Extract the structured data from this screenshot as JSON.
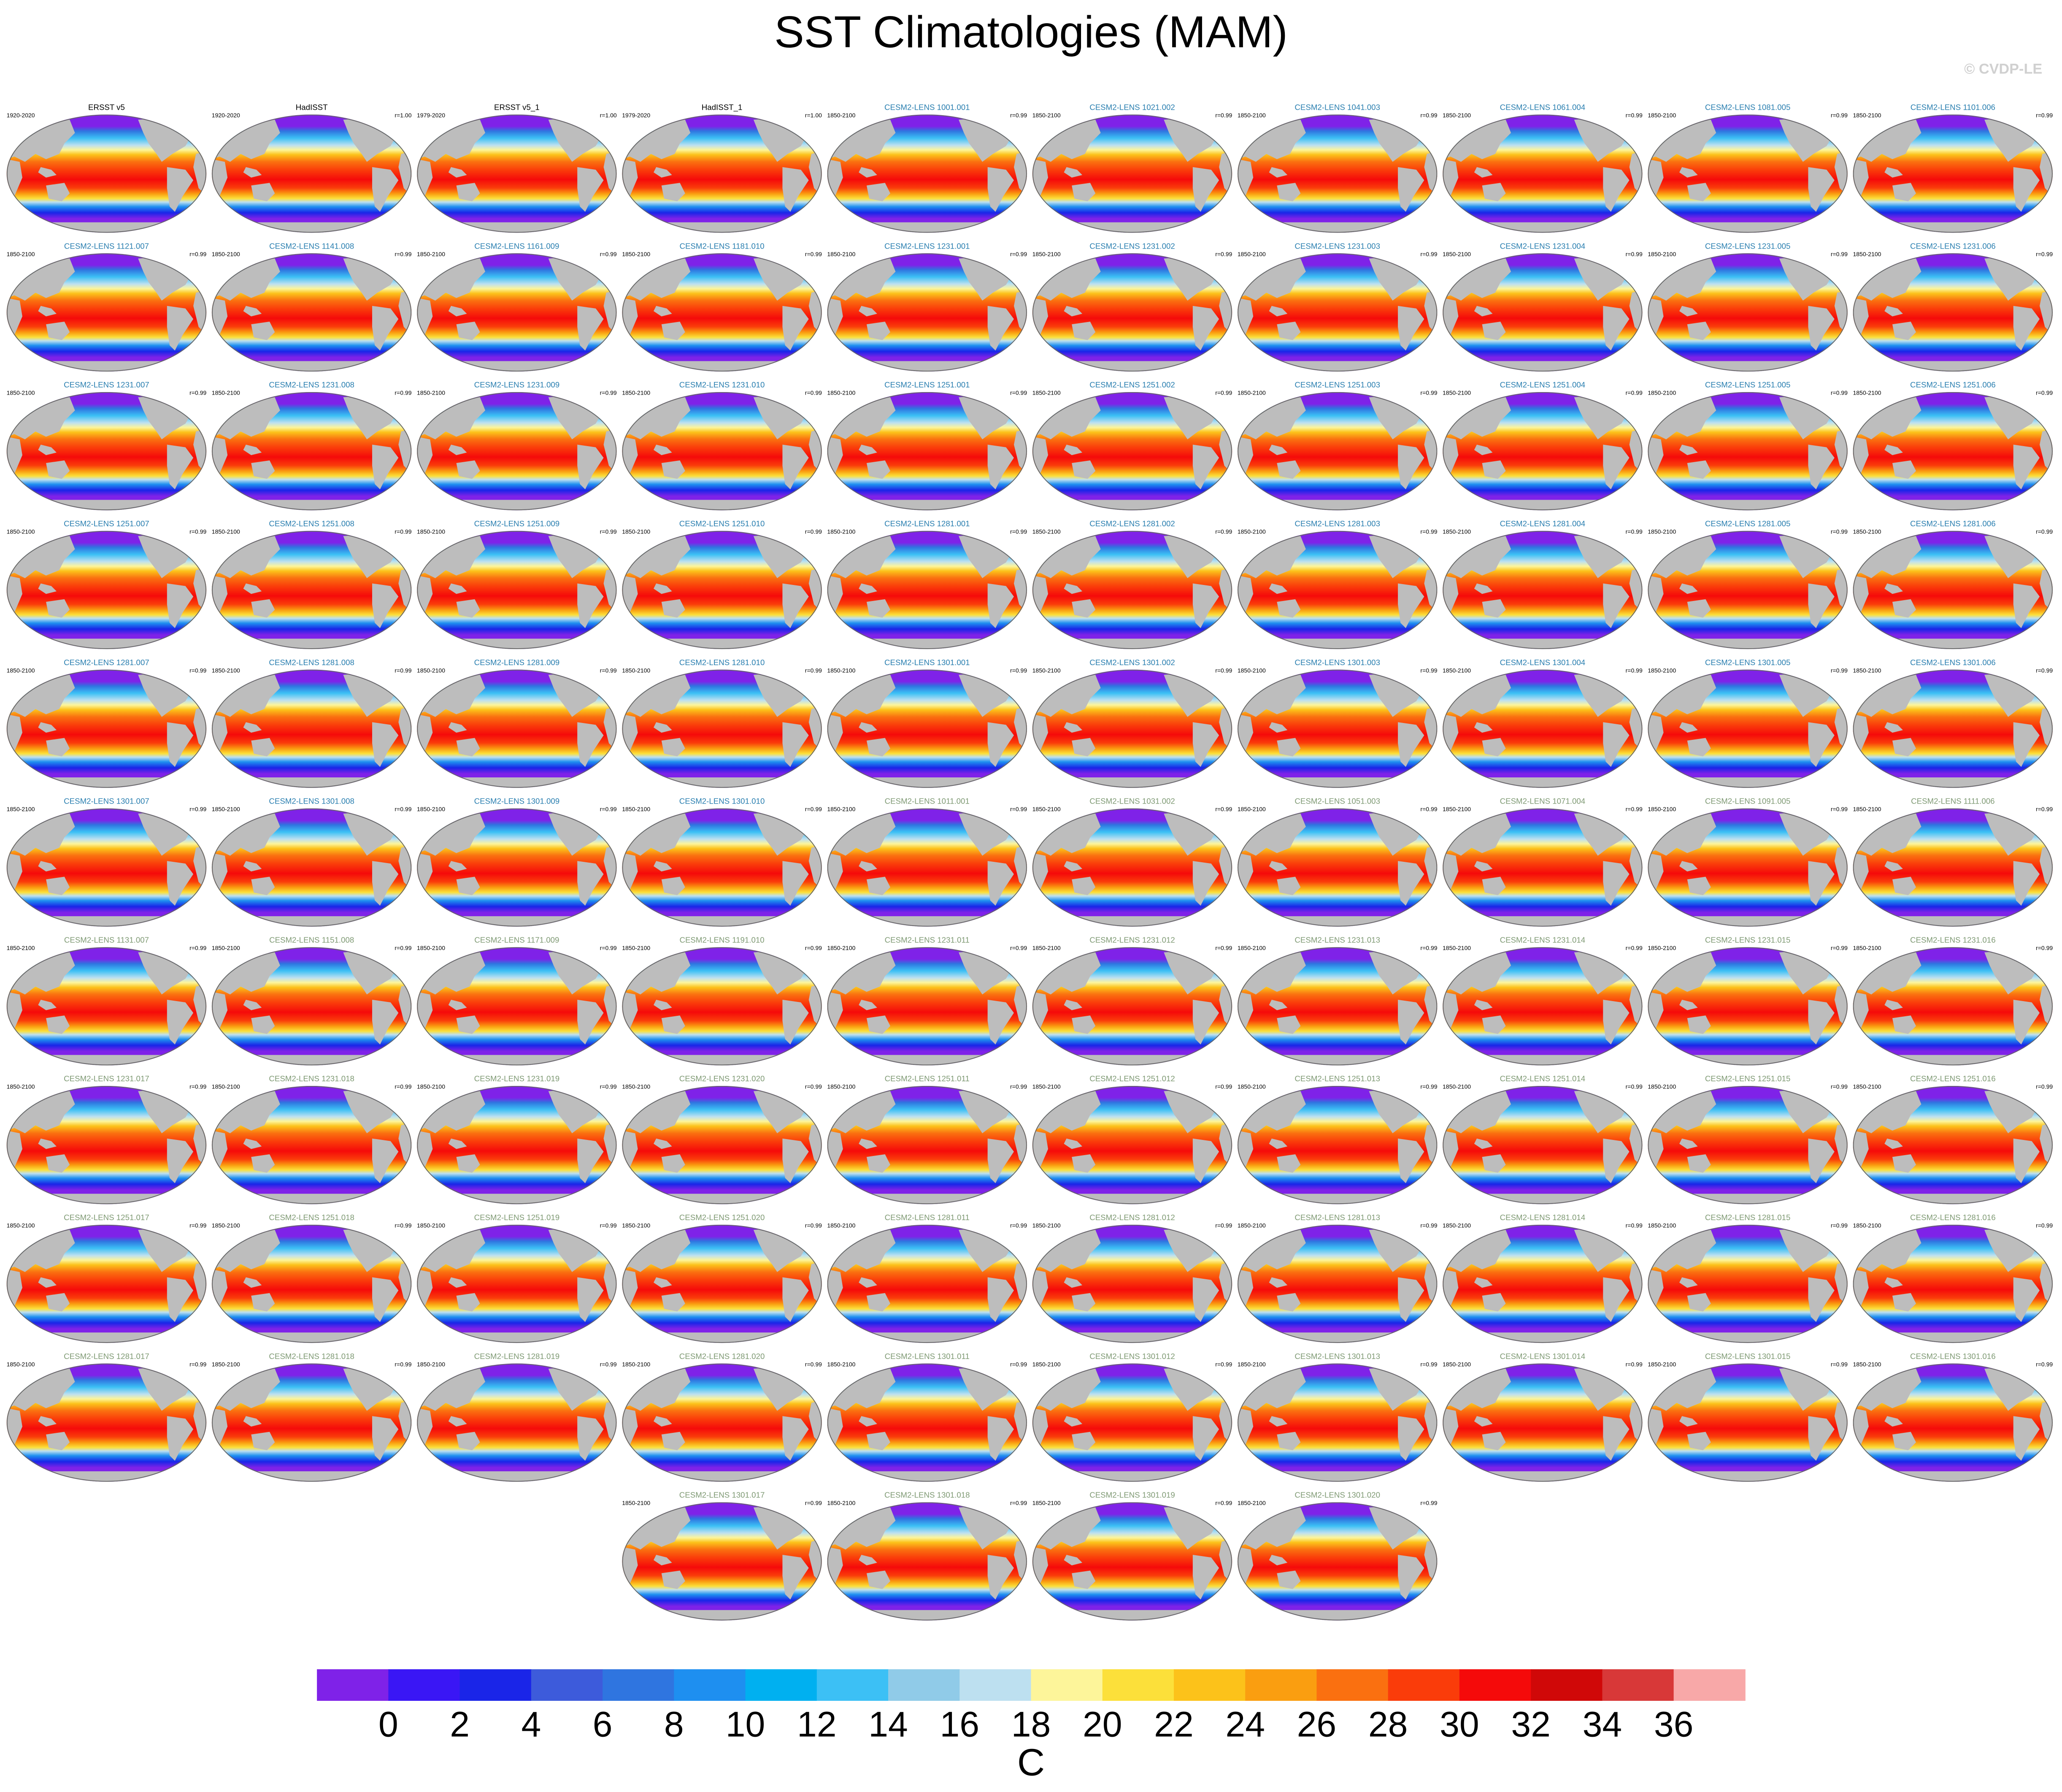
{
  "header": {
    "title": "SST Climatologies (MAM)",
    "watermark": "© CVDP-LE"
  },
  "panel_groups": [
    {
      "title_color": "#000000",
      "panels": [
        {
          "title": "ERSST v5",
          "period": "1920-2020"
        },
        {
          "title": "HadISST",
          "period": "1920-2020",
          "r": "r=1.00"
        },
        {
          "title": "ERSST v5_1",
          "period": "1979-2020",
          "r": "r=1.00"
        },
        {
          "title": "HadISST_1",
          "period": "1979-2020",
          "r": "r=1.00"
        }
      ]
    },
    {
      "title_color": "#2a7fb0",
      "panels": [
        {
          "title": "CESM2-LENS 1001.001",
          "period": "1850-2100",
          "r": "r=0.99"
        },
        {
          "title": "CESM2-LENS 1021.002",
          "period": "1850-2100",
          "r": "r=0.99"
        },
        {
          "title": "CESM2-LENS 1041.003",
          "period": "1850-2100",
          "r": "r=0.99"
        },
        {
          "title": "CESM2-LENS 1061.004",
          "period": "1850-2100",
          "r": "r=0.99"
        },
        {
          "title": "CESM2-LENS 1081.005",
          "period": "1850-2100",
          "r": "r=0.99"
        },
        {
          "title": "CESM2-LENS 1101.006",
          "period": "1850-2100",
          "r": "r=0.99"
        },
        {
          "title": "CESM2-LENS 1121.007",
          "period": "1850-2100",
          "r": "r=0.99"
        },
        {
          "title": "CESM2-LENS 1141.008",
          "period": "1850-2100",
          "r": "r=0.99"
        },
        {
          "title": "CESM2-LENS 1161.009",
          "period": "1850-2100",
          "r": "r=0.99"
        },
        {
          "title": "CESM2-LENS 1181.010",
          "period": "1850-2100",
          "r": "r=0.99"
        },
        {
          "title": "CESM2-LENS 1231.001",
          "period": "1850-2100",
          "r": "r=0.99"
        },
        {
          "title": "CESM2-LENS 1231.002",
          "period": "1850-2100",
          "r": "r=0.99"
        },
        {
          "title": "CESM2-LENS 1231.003",
          "period": "1850-2100",
          "r": "r=0.99"
        },
        {
          "title": "CESM2-LENS 1231.004",
          "period": "1850-2100",
          "r": "r=0.99"
        },
        {
          "title": "CESM2-LENS 1231.005",
          "period": "1850-2100",
          "r": "r=0.99"
        },
        {
          "title": "CESM2-LENS 1231.006",
          "period": "1850-2100",
          "r": "r=0.99"
        },
        {
          "title": "CESM2-LENS 1231.007",
          "period": "1850-2100",
          "r": "r=0.99"
        },
        {
          "title": "CESM2-LENS 1231.008",
          "period": "1850-2100",
          "r": "r=0.99"
        },
        {
          "title": "CESM2-LENS 1231.009",
          "period": "1850-2100",
          "r": "r=0.99"
        },
        {
          "title": "CESM2-LENS 1231.010",
          "period": "1850-2100",
          "r": "r=0.99"
        },
        {
          "title": "CESM2-LENS 1251.001",
          "period": "1850-2100",
          "r": "r=0.99"
        },
        {
          "title": "CESM2-LENS 1251.002",
          "period": "1850-2100",
          "r": "r=0.99"
        },
        {
          "title": "CESM2-LENS 1251.003",
          "period": "1850-2100",
          "r": "r=0.99"
        },
        {
          "title": "CESM2-LENS 1251.004",
          "period": "1850-2100",
          "r": "r=0.99"
        },
        {
          "title": "CESM2-LENS 1251.005",
          "period": "1850-2100",
          "r": "r=0.99"
        },
        {
          "title": "CESM2-LENS 1251.006",
          "period": "1850-2100",
          "r": "r=0.99"
        },
        {
          "title": "CESM2-LENS 1251.007",
          "period": "1850-2100",
          "r": "r=0.99"
        },
        {
          "title": "CESM2-LENS 1251.008",
          "period": "1850-2100",
          "r": "r=0.99"
        },
        {
          "title": "CESM2-LENS 1251.009",
          "period": "1850-2100",
          "r": "r=0.99"
        },
        {
          "title": "CESM2-LENS 1251.010",
          "period": "1850-2100",
          "r": "r=0.99"
        },
        {
          "title": "CESM2-LENS 1281.001",
          "period": "1850-2100",
          "r": "r=0.99"
        },
        {
          "title": "CESM2-LENS 1281.002",
          "period": "1850-2100",
          "r": "r=0.99"
        },
        {
          "title": "CESM2-LENS 1281.003",
          "period": "1850-2100",
          "r": "r=0.99"
        },
        {
          "title": "CESM2-LENS 1281.004",
          "period": "1850-2100",
          "r": "r=0.99"
        },
        {
          "title": "CESM2-LENS 1281.005",
          "period": "1850-2100",
          "r": "r=0.99"
        },
        {
          "title": "CESM2-LENS 1281.006",
          "period": "1850-2100",
          "r": "r=0.99"
        },
        {
          "title": "CESM2-LENS 1281.007",
          "period": "1850-2100",
          "r": "r=0.99"
        },
        {
          "title": "CESM2-LENS 1281.008",
          "period": "1850-2100",
          "r": "r=0.99"
        },
        {
          "title": "CESM2-LENS 1281.009",
          "period": "1850-2100",
          "r": "r=0.99"
        },
        {
          "title": "CESM2-LENS 1281.010",
          "period": "1850-2100",
          "r": "r=0.99"
        },
        {
          "title": "CESM2-LENS 1301.001",
          "period": "1850-2100",
          "r": "r=0.99"
        },
        {
          "title": "CESM2-LENS 1301.002",
          "period": "1850-2100",
          "r": "r=0.99"
        },
        {
          "title": "CESM2-LENS 1301.003",
          "period": "1850-2100",
          "r": "r=0.99"
        },
        {
          "title": "CESM2-LENS 1301.004",
          "period": "1850-2100",
          "r": "r=0.99"
        },
        {
          "title": "CESM2-LENS 1301.005",
          "period": "1850-2100",
          "r": "r=0.99"
        },
        {
          "title": "CESM2-LENS 1301.006",
          "period": "1850-2100",
          "r": "r=0.99"
        },
        {
          "title": "CESM2-LENS 1301.007",
          "period": "1850-2100",
          "r": "r=0.99"
        },
        {
          "title": "CESM2-LENS 1301.008",
          "period": "1850-2100",
          "r": "r=0.99"
        },
        {
          "title": "CESM2-LENS 1301.009",
          "period": "1850-2100",
          "r": "r=0.99"
        },
        {
          "title": "CESM2-LENS 1301.010",
          "period": "1850-2100",
          "r": "r=0.99"
        }
      ]
    },
    {
      "title_color": "#7f9a74",
      "panels": [
        {
          "title": "CESM2-LENS 1011.001",
          "period": "1850-2100",
          "r": "r=0.99"
        },
        {
          "title": "CESM2-LENS 1031.002",
          "period": "1850-2100",
          "r": "r=0.99"
        },
        {
          "title": "CESM2-LENS 1051.003",
          "period": "1850-2100",
          "r": "r=0.99"
        },
        {
          "title": "CESM2-LENS 1071.004",
          "period": "1850-2100",
          "r": "r=0.99"
        },
        {
          "title": "CESM2-LENS 1091.005",
          "period": "1850-2100",
          "r": "r=0.99"
        },
        {
          "title": "CESM2-LENS 1111.006",
          "period": "1850-2100",
          "r": "r=0.99"
        },
        {
          "title": "CESM2-LENS 1131.007",
          "period": "1850-2100",
          "r": "r=0.99"
        },
        {
          "title": "CESM2-LENS 1151.008",
          "period": "1850-2100",
          "r": "r=0.99"
        },
        {
          "title": "CESM2-LENS 1171.009",
          "period": "1850-2100",
          "r": "r=0.99"
        },
        {
          "title": "CESM2-LENS 1191.010",
          "period": "1850-2100",
          "r": "r=0.99"
        },
        {
          "title": "CESM2-LENS 1231.011",
          "period": "1850-2100",
          "r": "r=0.99"
        },
        {
          "title": "CESM2-LENS 1231.012",
          "period": "1850-2100",
          "r": "r=0.99"
        },
        {
          "title": "CESM2-LENS 1231.013",
          "period": "1850-2100",
          "r": "r=0.99"
        },
        {
          "title": "CESM2-LENS 1231.014",
          "period": "1850-2100",
          "r": "r=0.99"
        },
        {
          "title": "CESM2-LENS 1231.015",
          "period": "1850-2100",
          "r": "r=0.99"
        },
        {
          "title": "CESM2-LENS 1231.016",
          "period": "1850-2100",
          "r": "r=0.99"
        },
        {
          "title": "CESM2-LENS 1231.017",
          "period": "1850-2100",
          "r": "r=0.99"
        },
        {
          "title": "CESM2-LENS 1231.018",
          "period": "1850-2100",
          "r": "r=0.99"
        },
        {
          "title": "CESM2-LENS 1231.019",
          "period": "1850-2100",
          "r": "r=0.99"
        },
        {
          "title": "CESM2-LENS 1231.020",
          "period": "1850-2100",
          "r": "r=0.99"
        },
        {
          "title": "CESM2-LENS 1251.011",
          "period": "1850-2100",
          "r": "r=0.99"
        },
        {
          "title": "CESM2-LENS 1251.012",
          "period": "1850-2100",
          "r": "r=0.99"
        },
        {
          "title": "CESM2-LENS 1251.013",
          "period": "1850-2100",
          "r": "r=0.99"
        },
        {
          "title": "CESM2-LENS 1251.014",
          "period": "1850-2100",
          "r": "r=0.99"
        },
        {
          "title": "CESM2-LENS 1251.015",
          "period": "1850-2100",
          "r": "r=0.99"
        },
        {
          "title": "CESM2-LENS 1251.016",
          "period": "1850-2100",
          "r": "r=0.99"
        },
        {
          "title": "CESM2-LENS 1251.017",
          "period": "1850-2100",
          "r": "r=0.99"
        },
        {
          "title": "CESM2-LENS 1251.018",
          "period": "1850-2100",
          "r": "r=0.99"
        },
        {
          "title": "CESM2-LENS 1251.019",
          "period": "1850-2100",
          "r": "r=0.99"
        },
        {
          "title": "CESM2-LENS 1251.020",
          "period": "1850-2100",
          "r": "r=0.99"
        },
        {
          "title": "CESM2-LENS 1281.011",
          "period": "1850-2100",
          "r": "r=0.99"
        },
        {
          "title": "CESM2-LENS 1281.012",
          "period": "1850-2100",
          "r": "r=0.99"
        },
        {
          "title": "CESM2-LENS 1281.013",
          "period": "1850-2100",
          "r": "r=0.99"
        },
        {
          "title": "CESM2-LENS 1281.014",
          "period": "1850-2100",
          "r": "r=0.99"
        },
        {
          "title": "CESM2-LENS 1281.015",
          "period": "1850-2100",
          "r": "r=0.99"
        },
        {
          "title": "CESM2-LENS 1281.016",
          "period": "1850-2100",
          "r": "r=0.99"
        },
        {
          "title": "CESM2-LENS 1281.017",
          "period": "1850-2100",
          "r": "r=0.99"
        },
        {
          "title": "CESM2-LENS 1281.018",
          "period": "1850-2100",
          "r": "r=0.99"
        },
        {
          "title": "CESM2-LENS 1281.019",
          "period": "1850-2100",
          "r": "r=0.99"
        },
        {
          "title": "CESM2-LENS 1281.020",
          "period": "1850-2100",
          "r": "r=0.99"
        },
        {
          "title": "CESM2-LENS 1301.011",
          "period": "1850-2100",
          "r": "r=0.99"
        },
        {
          "title": "CESM2-LENS 1301.012",
          "period": "1850-2100",
          "r": "r=0.99"
        },
        {
          "title": "CESM2-LENS 1301.013",
          "period": "1850-2100",
          "r": "r=0.99"
        },
        {
          "title": "CESM2-LENS 1301.014",
          "period": "1850-2100",
          "r": "r=0.99"
        },
        {
          "title": "CESM2-LENS 1301.015",
          "period": "1850-2100",
          "r": "r=0.99"
        },
        {
          "title": "CESM2-LENS 1301.016",
          "period": "1850-2100",
          "r": "r=0.99"
        },
        {
          "title": "CESM2-LENS 1301.017",
          "period": "1850-2100",
          "r": "r=0.99"
        },
        {
          "title": "CESM2-LENS 1301.018",
          "period": "1850-2100",
          "r": "r=0.99"
        },
        {
          "title": "CESM2-LENS 1301.019",
          "period": "1850-2100",
          "r": "r=0.99"
        },
        {
          "title": "CESM2-LENS 1301.020",
          "period": "1850-2100",
          "r": "r=0.99"
        }
      ]
    }
  ],
  "colorbar": {
    "label": "C",
    "ticks": [
      0,
      2,
      4,
      6,
      8,
      10,
      12,
      14,
      16,
      18,
      20,
      22,
      24,
      26,
      28,
      30,
      32,
      34,
      36
    ],
    "colors": [
      "#7f22e8",
      "#3a16f5",
      "#1a25e8",
      "#3d5bdb",
      "#2f75e0",
      "#1e8ff0",
      "#00b0f0",
      "#3cc0f5",
      "#90cbe8",
      "#bde0f0",
      "#fdf59a",
      "#fce03a",
      "#fcc21a",
      "#fa9e10",
      "#fa7010",
      "#fa3c0a",
      "#f50a0a",
      "#d00808",
      "#d83838",
      "#f8a8a8"
    ]
  }
}
